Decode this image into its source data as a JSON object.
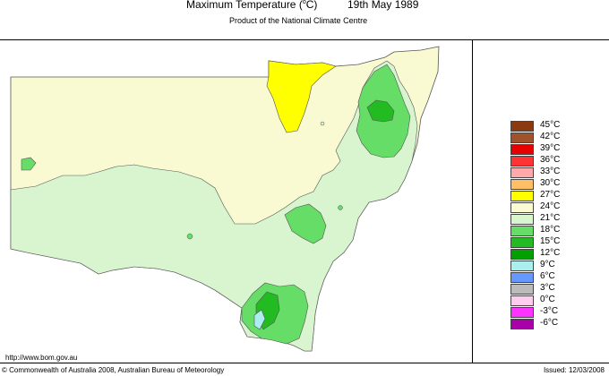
{
  "header": {
    "title": "Maximum Temperature (",
    "title_sup": "o",
    "title_tail": "C)",
    "date": "19th May 1989",
    "subtitle": "Product of the National Climate Centre"
  },
  "map": {
    "region": "New South Wales",
    "variable": "Maximum Temperature",
    "colors": {
      "band_21_24": "#fafad2",
      "band_24_27": "#fafad2",
      "band_18_21": "#d8f5d0",
      "band_15_18": "#66dd66",
      "band_12_15": "#22bb22",
      "band_9_12": "#aaeeee"
    }
  },
  "legend": {
    "items": [
      {
        "label": "45°C",
        "color": "#8b3a0f"
      },
      {
        "label": "42°C",
        "color": "#a0522d"
      },
      {
        "label": "39°C",
        "color": "#e60000"
      },
      {
        "label": "36°C",
        "color": "#ff3333"
      },
      {
        "label": "33°C",
        "color": "#ffaaaa"
      },
      {
        "label": "30°C",
        "color": "#ffbf66"
      },
      {
        "label": "27°C",
        "color": "#ffff00"
      },
      {
        "label": "24°C",
        "color": "#fafad2"
      },
      {
        "label": "21°C",
        "color": "#d8f5d0"
      },
      {
        "label": "18°C",
        "color": "#66dd66"
      },
      {
        "label": "15°C",
        "color": "#22bb22"
      },
      {
        "label": "12°C",
        "color": "#00a000"
      },
      {
        "label": "9°C",
        "color": "#aaeeee"
      },
      {
        "label": "6°C",
        "color": "#6699ff"
      },
      {
        "label": "3°C",
        "color": "#bbbbbb"
      },
      {
        "label": "0°C",
        "color": "#ffccee"
      },
      {
        "label": "-3°C",
        "color": "#ff33ff"
      },
      {
        "label": "-6°C",
        "color": "#aa00aa"
      }
    ]
  },
  "footer": {
    "url": "http://www.bom.gov.au",
    "copyright": "© Commonwealth of Australia 2008, Australian Bureau of Meteorology",
    "issued": "Issued: 12/03/2008"
  }
}
